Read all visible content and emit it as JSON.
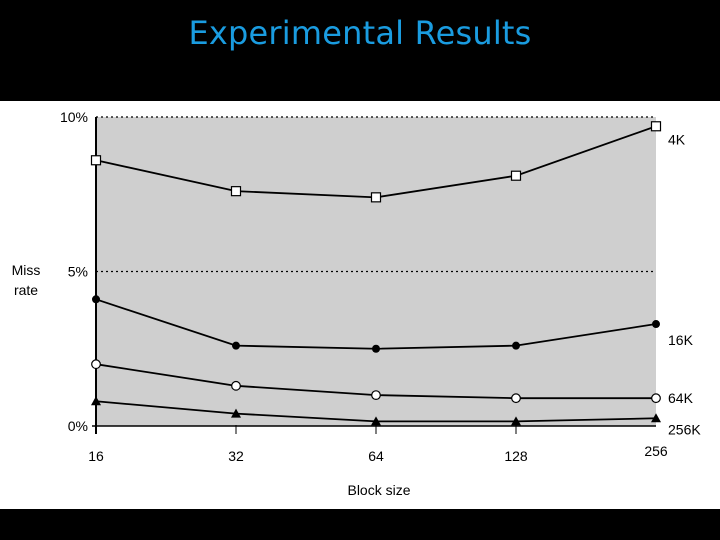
{
  "slide": {
    "title": "Experimental Results"
  },
  "chart_data": {
    "type": "line",
    "title": "",
    "xlabel": "Block size",
    "ylabel": "Miss rate",
    "categories": [
      "16",
      "32",
      "64",
      "128",
      "256"
    ],
    "y_ticks": [
      "0%",
      "5%",
      "10%"
    ],
    "ylim": [
      0,
      10
    ],
    "grid": "dotted horizontal lines at 5% and 10%",
    "legend": "labels at right end of each line",
    "background_color": "#cfcfcf",
    "series": [
      {
        "name": "4K",
        "marker": "open-square",
        "values": [
          8.6,
          7.6,
          7.4,
          8.1,
          9.7
        ]
      },
      {
        "name": "16K",
        "marker": "filled-circle",
        "values": [
          4.1,
          2.6,
          2.5,
          2.6,
          3.3
        ]
      },
      {
        "name": "64K",
        "marker": "open-circle",
        "values": [
          2.0,
          1.3,
          1.0,
          0.9,
          0.9
        ]
      },
      {
        "name": "256K",
        "marker": "filled-triangle",
        "values": [
          0.8,
          0.4,
          0.15,
          0.15,
          0.25
        ]
      }
    ]
  }
}
